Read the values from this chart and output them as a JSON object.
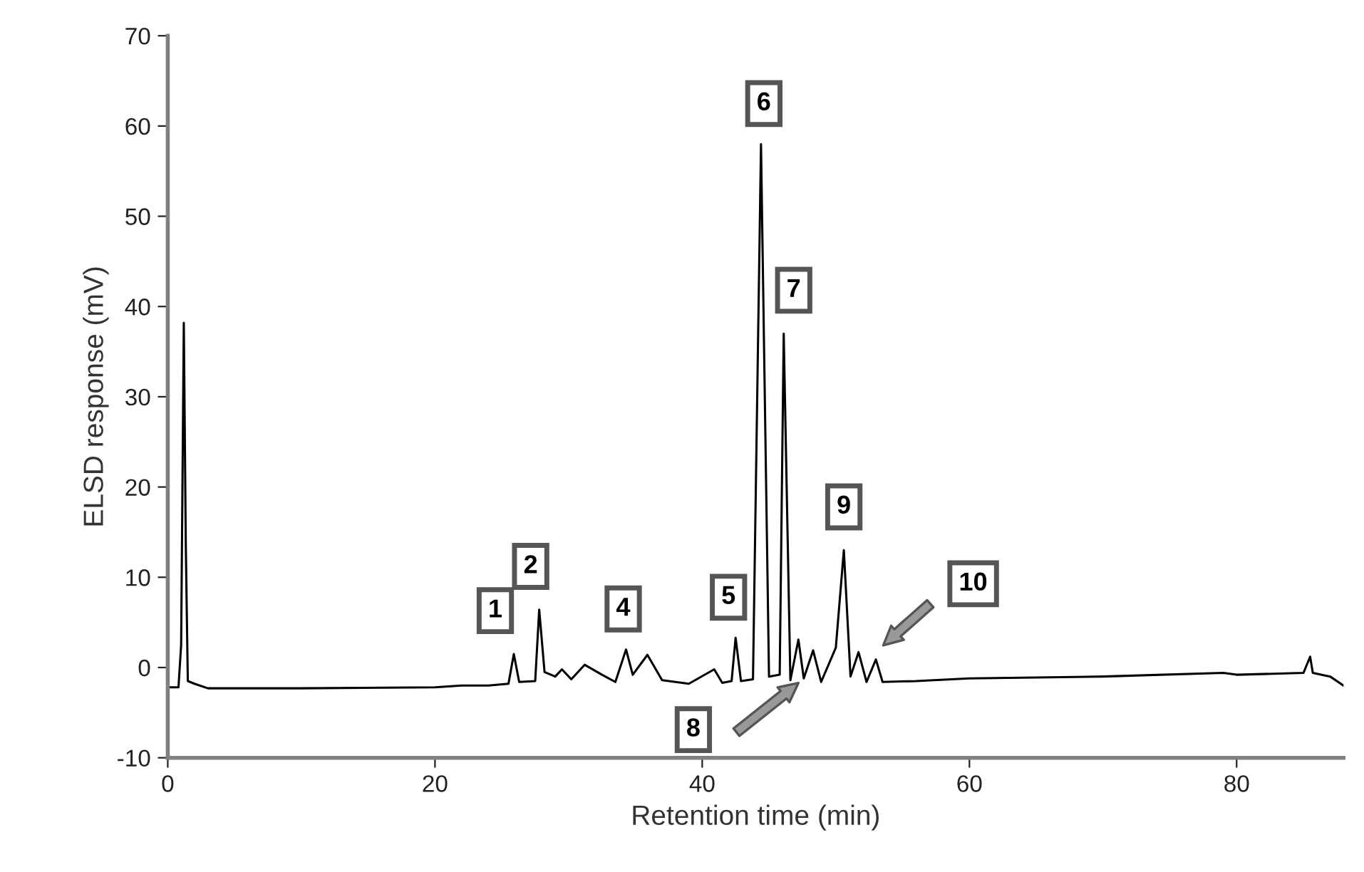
{
  "chart_data": {
    "type": "line",
    "xlabel": "Retention time (min)",
    "ylabel": "ELSD response (mV)",
    "xlim": [
      0,
      88
    ],
    "ylim": [
      -10,
      70
    ],
    "xticks": [
      0,
      20,
      40,
      60,
      80
    ],
    "yticks": [
      -10,
      0,
      10,
      20,
      30,
      40,
      50,
      60,
      70
    ],
    "grid": false,
    "legend": false,
    "marker": "none",
    "line_style": "solid",
    "series": [
      {
        "color": "#000000",
        "x": [
          0,
          0.8,
          1.0,
          1.2,
          1.35,
          1.5,
          2,
          3,
          10,
          20,
          22,
          24,
          25.5,
          25.9,
          26.3,
          27.5,
          27.8,
          28.2,
          29,
          29.5,
          30.2,
          31.2,
          32.5,
          33.5,
          34.3,
          34.8,
          35.9,
          37,
          39,
          40.9,
          41.5,
          42.2,
          42.5,
          42.9,
          43.8,
          44.4,
          45,
          45.8,
          46.1,
          46.6,
          47.2,
          47.6,
          48.3,
          48.9,
          50.0,
          50.6,
          51.1,
          51.7,
          52.3,
          53.0,
          53.5,
          56,
          60,
          70,
          79,
          80,
          85,
          85.5,
          85.7,
          87,
          88
        ],
        "values": [
          -2.2,
          -2.2,
          2.5,
          38.2,
          13.5,
          -1.5,
          -1.8,
          -2.3,
          -2.3,
          -2.2,
          -2.0,
          -2.0,
          -1.8,
          1.5,
          -1.6,
          -1.5,
          6.4,
          -0.5,
          -1.0,
          -0.2,
          -1.3,
          0.3,
          -0.8,
          -1.6,
          2.0,
          -0.8,
          1.4,
          -1.4,
          -1.8,
          -0.2,
          -1.7,
          -1.5,
          3.3,
          -1.5,
          -1.3,
          58,
          -1.0,
          -0.8,
          37,
          -1.4,
          3.1,
          -1.2,
          1.9,
          -1.6,
          2.2,
          13,
          -1.0,
          1.7,
          -1.6,
          0.9,
          -1.6,
          -1.5,
          -1.2,
          -1.0,
          -0.6,
          -0.8,
          -0.6,
          1.2,
          -0.6,
          -1.0,
          -2.0
        ]
      }
    ],
    "annotations": [
      {
        "text": "1",
        "x": 25.9,
        "y": 1.5
      },
      {
        "text": "2",
        "x": 27.8,
        "y": 6.4
      },
      {
        "text": "4",
        "x": 34.3,
        "y": 2.0
      },
      {
        "text": "5",
        "x": 42.5,
        "y": 3.3
      },
      {
        "text": "6",
        "x": 44.4,
        "y": 58
      },
      {
        "text": "7",
        "x": 46.1,
        "y": 37
      },
      "8",
      {
        "text": "9",
        "x": 50.6,
        "y": 13
      },
      "10"
    ]
  }
}
